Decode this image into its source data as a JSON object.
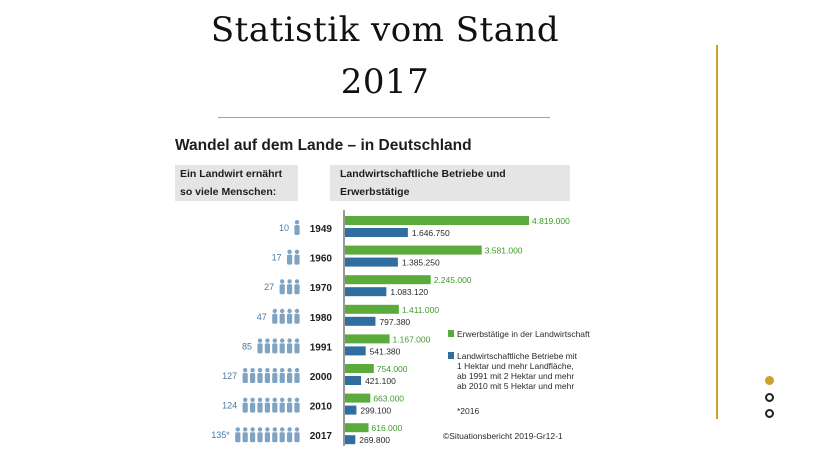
{
  "slide": {
    "title_line1": "Statistik vom Stand",
    "title_line2": "2017"
  },
  "colors": {
    "accent": "#c9a227",
    "green": "#5aab3c",
    "blue": "#2f6e9e",
    "person": "#7fa3c2",
    "header_bg": "#e5e5e5"
  },
  "infographic": {
    "title": "Wandel auf dem Lande – in Deutschland",
    "left_header_line1": "Ein Landwirt ernährt",
    "left_header_line2": "so viele Menschen:",
    "right_header_line1": "Landwirtschaftliche Betriebe und",
    "right_header_line2": "Erwerbstätige",
    "legend_green": "Erwerbstätige in der Landwirtschaft",
    "legend_blue_lines": [
      "Landwirtschaftliche Betriebe mit",
      "1 Hektar und mehr Landfläche,",
      "ab 1991 mit 2 Hektar und mehr",
      "ab 2010 mit 5 Hektar und mehr"
    ],
    "footnote": "*2016",
    "source": "©Situationsbericht 2019-Gr12-1"
  },
  "chart_data": {
    "type": "bar",
    "orientation": "horizontal",
    "title": "Wandel auf dem Lande – in Deutschland",
    "categories": [
      "1949",
      "1960",
      "1970",
      "1980",
      "1991",
      "2000",
      "2010",
      "2017"
    ],
    "series": [
      {
        "name": "Erwerbstätige in der Landwirtschaft",
        "color": "#5aab3c",
        "values": [
          4819000,
          3581000,
          2245000,
          1411000,
          1167000,
          754000,
          663000,
          616000
        ],
        "labels": [
          "4.819.000",
          "3.581.000",
          "2.245.000",
          "1.411.000",
          "1.167.000",
          "754.000",
          "663.000",
          "616.000"
        ]
      },
      {
        "name": "Landwirtschaftliche Betriebe",
        "color": "#2f6e9e",
        "values": [
          1646750,
          1385250,
          1083120,
          797380,
          541380,
          421100,
          299100,
          269800
        ],
        "labels": [
          "1.646.750",
          "1.385.250",
          "1.083.120",
          "797.380",
          "541.380",
          "421.100",
          "299.100",
          "269.800"
        ]
      }
    ],
    "people_fed": {
      "values": [
        10,
        17,
        27,
        47,
        85,
        127,
        124,
        135
      ],
      "labels": [
        "10",
        "17",
        "27",
        "47",
        "85",
        "127",
        "124",
        "135*"
      ],
      "icon_counts": [
        1,
        2,
        3,
        4,
        6,
        8,
        8,
        9
      ]
    }
  }
}
